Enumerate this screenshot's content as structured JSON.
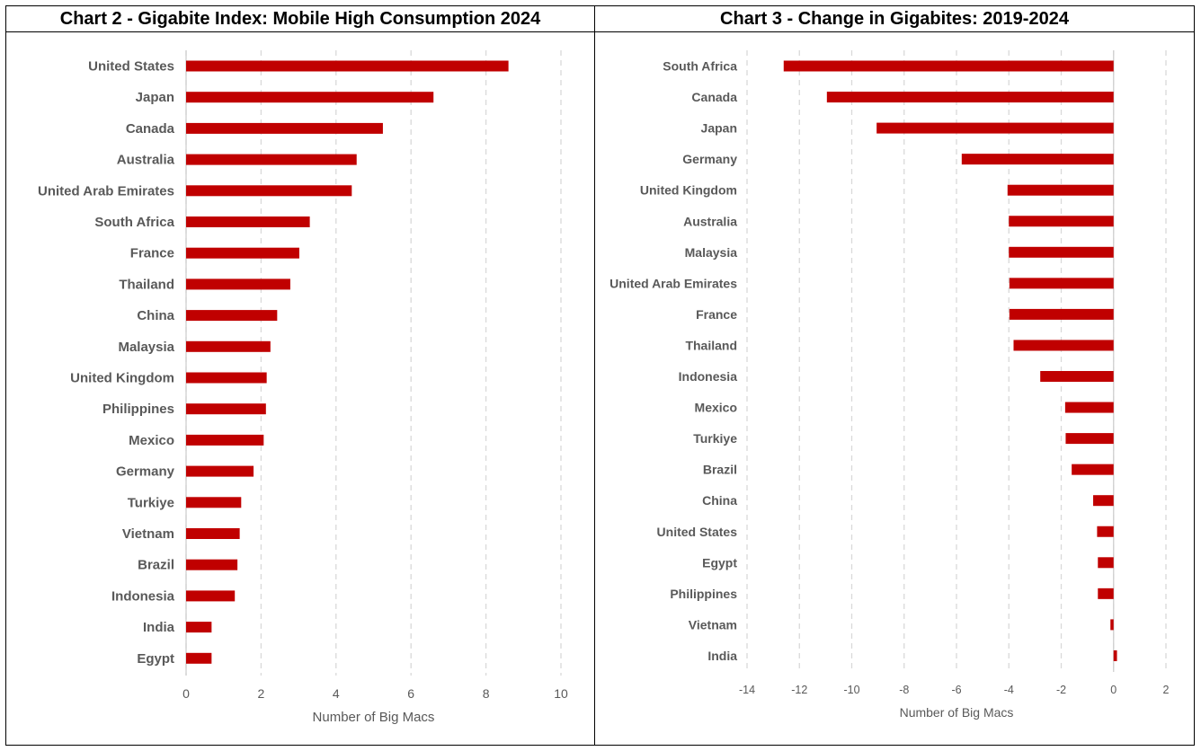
{
  "chart_data": [
    {
      "type": "bar",
      "orientation": "horizontal",
      "title": "Chart 2 - Gigabite Index: Mobile High Consumption 2024",
      "xlabel": "Number of Big Macs",
      "ylabel": "",
      "xlim": [
        0,
        10
      ],
      "xticks": [
        "0",
        "2",
        "4",
        "6",
        "8",
        "10"
      ],
      "grid": "vertical-dashed",
      "color": "#C00000",
      "categories": [
        "United States",
        "Japan",
        "Canada",
        "Australia",
        "United Arab Emirates",
        "South Africa",
        "France",
        "Thailand",
        "China",
        "Malaysia",
        "United Kingdom",
        "Philippines",
        "Mexico",
        "Germany",
        "Turkiye",
        "Vietnam",
        "Brazil",
        "Indonesia",
        "India",
        "Egypt"
      ],
      "values": [
        8.6,
        6.6,
        5.25,
        4.55,
        4.42,
        3.3,
        3.02,
        2.78,
        2.43,
        2.25,
        2.15,
        2.13,
        2.07,
        1.8,
        1.47,
        1.43,
        1.37,
        1.3,
        0.68,
        0.68
      ]
    },
    {
      "type": "bar",
      "orientation": "horizontal",
      "title": "Chart 3 - Change in Gigabites: 2019-2024",
      "xlabel": "Number of Big Macs",
      "ylabel": "",
      "xlim": [
        -14,
        2
      ],
      "xticks": [
        "-14",
        "-12",
        "-10",
        "-8",
        "-6",
        "-4",
        "-2",
        "0",
        "2"
      ],
      "grid": "vertical-dashed",
      "color": "#C00000",
      "categories": [
        "South Africa",
        "Canada",
        "Japan",
        "Germany",
        "United Kingdom",
        "Australia",
        "Malaysia",
        "United Arab Emirates",
        "France",
        "Thailand",
        "Indonesia",
        "Mexico",
        "Turkiye",
        "Brazil",
        "China",
        "United States",
        "Egypt",
        "Philippines",
        "Vietnam",
        "India"
      ],
      "values": [
        -12.6,
        -10.95,
        -9.05,
        -5.8,
        -4.05,
        -4.0,
        -4.0,
        -3.98,
        -3.98,
        -3.82,
        -2.8,
        -1.85,
        -1.83,
        -1.6,
        -0.78,
        -0.63,
        -0.6,
        -0.6,
        -0.12,
        0.13
      ]
    }
  ]
}
